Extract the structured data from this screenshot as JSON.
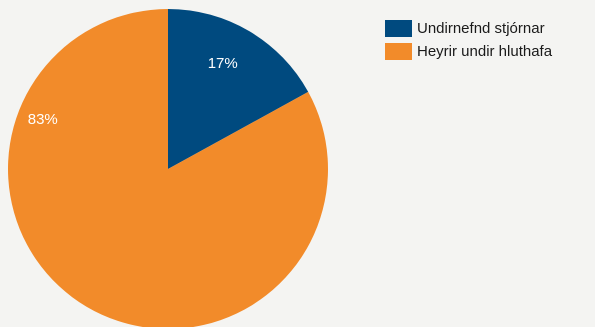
{
  "chart_data": {
    "type": "pie",
    "title": "",
    "start_angle_deg": 0,
    "direction": "clockwise",
    "slices": [
      {
        "name": "Undirnefnd stjórnar",
        "value": 17,
        "label": "17%",
        "color": "#004a7f"
      },
      {
        "name": "Heyrir undir hluthafa",
        "value": 83,
        "label": "83%",
        "color": "#f28b2a"
      }
    ],
    "legend": {
      "position": "top-right",
      "entries": [
        "Undirnefnd stjórnar",
        "Heyrir undir hluthafa"
      ]
    }
  }
}
